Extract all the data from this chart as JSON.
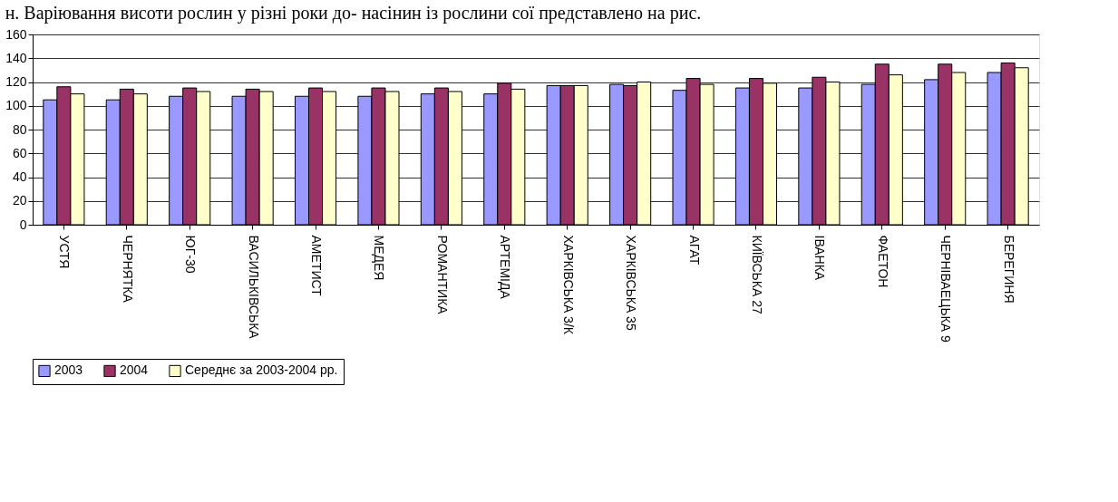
{
  "chart_data": {
    "type": "bar",
    "annotations": [
      "н. Варіювання висоти рослин у різні роки до-",
      "насінин із рослини сої представлено на рис."
    ],
    "categories": [
      "УСТЯ",
      "ЧЕРНЯТКА",
      "ЮГ-30",
      "ВАСИЛЬКІВСЬКА",
      "АМЕТИСТ",
      "МЕДЕЯ",
      "РОМАНТИКА",
      "АРТЕМІДА",
      "ХАРКІВСЬКА 3/К",
      "ХАРКІВСЬКА 35",
      "АГАТ",
      "КИЇВСЬКА 27",
      "ІВАНКА",
      "ФАЕТОН",
      "ЧЕРНІВАЕЦЬКА 9",
      "БЕРЕГИНЯ"
    ],
    "series": [
      {
        "name": "2003",
        "color": "#9999ff",
        "values": [
          105,
          105,
          108,
          108,
          108,
          108,
          110,
          110,
          117,
          118,
          113,
          115,
          115,
          118,
          122,
          128
        ]
      },
      {
        "name": "2004",
        "color": "#993366",
        "values": [
          116,
          114,
          115,
          114,
          115,
          115,
          115,
          119,
          117,
          117,
          123,
          123,
          124,
          135,
          135,
          136
        ]
      },
      {
        "name": "Середнє за 2003-2004 рр.",
        "color": "#ffffcc",
        "values": [
          110,
          110,
          112,
          112,
          112,
          112,
          112,
          114,
          117,
          120,
          118,
          119,
          120,
          126,
          128,
          132
        ]
      }
    ],
    "ylim": [
      0,
      160
    ],
    "yticks": [
      0,
      20,
      40,
      60,
      80,
      100,
      120,
      140,
      160
    ],
    "grid": "y",
    "legend": "bottom"
  }
}
